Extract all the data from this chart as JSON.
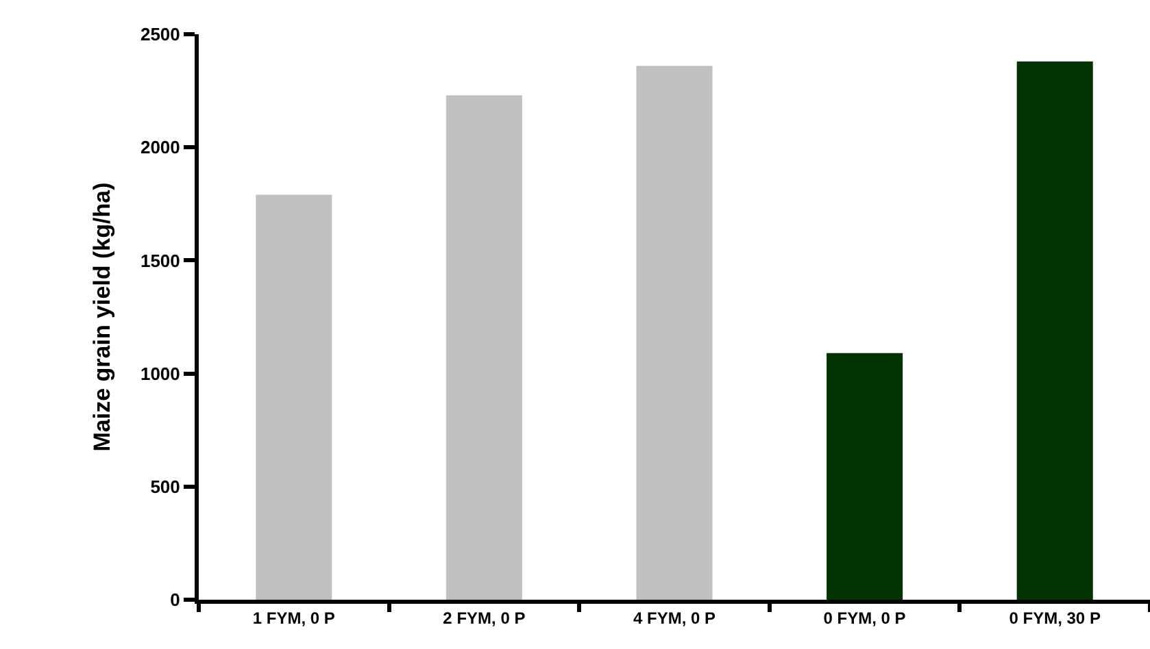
{
  "chart_data": {
    "type": "bar",
    "ylabel": "Maize grain yield (kg/ha)",
    "categories": [
      "1 FYM, 0 P",
      "2 FYM, 0 P",
      "4 FYM, 0 P",
      "0 FYM, 0 P",
      "0 FYM, 30 P"
    ],
    "values": [
      1790,
      2230,
      2360,
      1090,
      2380
    ],
    "colors": [
      "#c0c0c0",
      "#c0c0c0",
      "#c0c0c0",
      "#033303",
      "#033303"
    ],
    "ylim": [
      0,
      2500
    ],
    "yticks": [
      0,
      500,
      1000,
      1500,
      2000,
      2500
    ]
  }
}
